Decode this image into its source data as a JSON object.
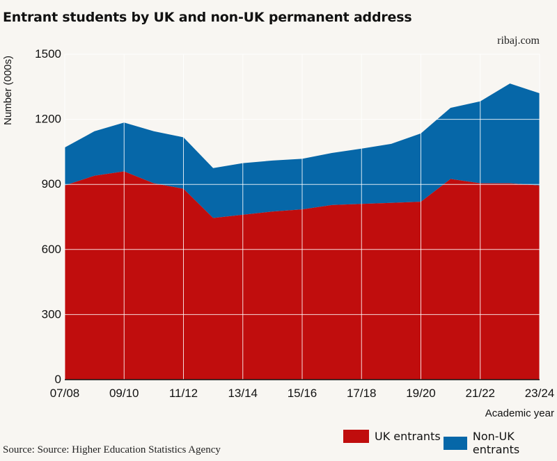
{
  "title": "Entrant students by UK and non-UK permanent address",
  "brand": "ribaj.com",
  "source": "Source: Source: Higher Education Statistics Agency",
  "colors": {
    "uk": "#c00d0d",
    "non_uk": "#0667a8",
    "background": "#f8f6f2"
  },
  "chart_data": {
    "type": "area",
    "stacked": true,
    "title": "Entrant students by UK and non-UK permanent address",
    "xlabel": "Academic year",
    "ylabel": "Number (000s)",
    "ylim": [
      0,
      1500
    ],
    "yticks": [
      0,
      300,
      600,
      900,
      1200,
      1500
    ],
    "grid": true,
    "legend_position": "bottom-right",
    "x": [
      "07/08",
      "08/09",
      "09/10",
      "10/11",
      "11/12",
      "12/13",
      "13/14",
      "14/15",
      "15/16",
      "16/17",
      "17/18",
      "18/19",
      "19/20",
      "20/21",
      "21/22",
      "22/23",
      "23/24"
    ],
    "xtick_labels": [
      "07/08",
      "09/10",
      "11/12",
      "13/14",
      "15/16",
      "17/18",
      "19/20",
      "21/22",
      "23/24"
    ],
    "series": [
      {
        "name": "UK entrants",
        "color": "#c00d0d",
        "values": [
          895,
          940,
          960,
          905,
          880,
          745,
          760,
          775,
          785,
          805,
          810,
          815,
          820,
          925,
          905,
          905,
          895
        ]
      },
      {
        "name": "Non-UK entrants",
        "color": "#0667a8",
        "values": [
          175,
          205,
          225,
          240,
          237,
          230,
          238,
          235,
          233,
          240,
          255,
          272,
          315,
          328,
          378,
          460,
          425
        ]
      }
    ]
  }
}
